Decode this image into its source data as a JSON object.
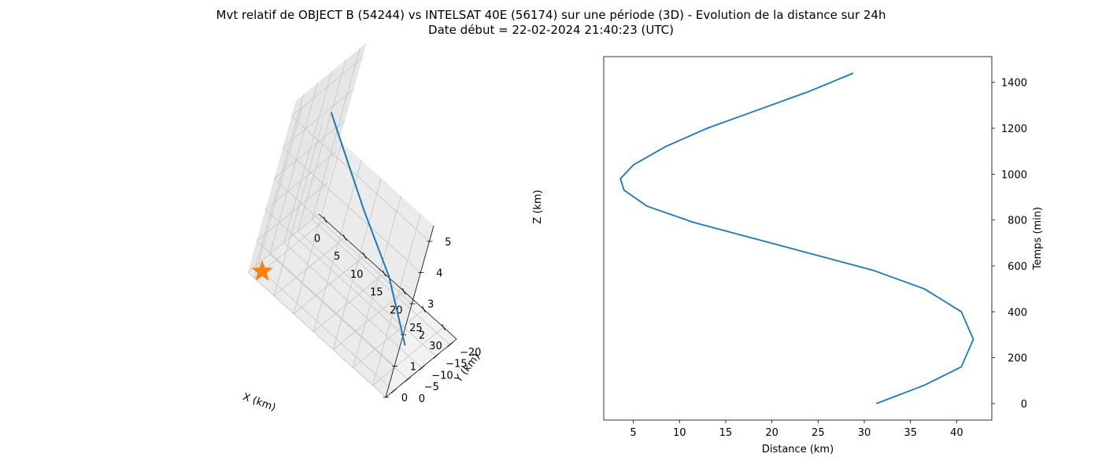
{
  "title_line1": "Mvt relatif de OBJECT B (54244) vs INTELSAT 40E (56174) sur une période (3D) - Evolution de la distance sur 24h",
  "title_line2": "Date début = 22-02-2024 21:40:23 (UTC)",
  "chart_data": [
    {
      "type": "line3d",
      "xlabel": "X (km)",
      "ylabel": "Y (km)",
      "zlabel": "Z (km)",
      "xticks": [
        "0",
        "5",
        "10",
        "15",
        "20",
        "25",
        "30"
      ],
      "yticks": [
        "0",
        "−5",
        "−10",
        "−15",
        "−20"
      ],
      "zticks": [
        "0",
        "1",
        "2",
        "3",
        "4",
        "5"
      ],
      "xlim": [
        -1.6,
        33.3
      ],
      "ylim": [
        -22.4,
        2.8
      ],
      "zlim": [
        0,
        5.5
      ],
      "grid": true,
      "series": [
        {
          "marker": "star",
          "color": "#ff7f0e",
          "points": [
            [
              0,
              0,
              0
            ]
          ]
        },
        {
          "color": "#1f77b4",
          "points": [
            [
              31.2,
              -4.2,
              0.9
            ],
            [
              29.0,
              -3.9,
              1.4
            ],
            [
              24.5,
              -3.3,
              2.4
            ],
            [
              16.0,
              -2.6,
              3.6
            ],
            [
              8.0,
              -2.3,
              4.8
            ],
            [
              4.0,
              -2.2,
              5.4
            ]
          ]
        }
      ]
    },
    {
      "type": "line",
      "xlabel": "Distance (km)",
      "ylabel": "Temps (min)",
      "xlim": [
        1.8,
        43.8
      ],
      "ylim": [
        -72,
        1512
      ],
      "xticks": [
        5,
        10,
        15,
        20,
        25,
        30,
        35,
        40
      ],
      "yticks": [
        0,
        200,
        400,
        600,
        800,
        1000,
        1200,
        1400
      ],
      "y_axis_side": "right",
      "grid": false,
      "series": [
        {
          "color": "#1f77b4",
          "x": [
            31.3,
            36.5,
            40.5,
            41.8,
            40.5,
            36.5,
            31.0,
            24.5,
            18.0,
            11.5,
            6.5,
            4.0,
            3.6,
            5.0,
            8.5,
            13.0,
            18.5,
            24.0,
            28.8
          ],
          "y": [
            0,
            80,
            160,
            280,
            400,
            500,
            580,
            650,
            720,
            790,
            860,
            930,
            980,
            1040,
            1120,
            1200,
            1280,
            1360,
            1440
          ]
        }
      ]
    }
  ]
}
